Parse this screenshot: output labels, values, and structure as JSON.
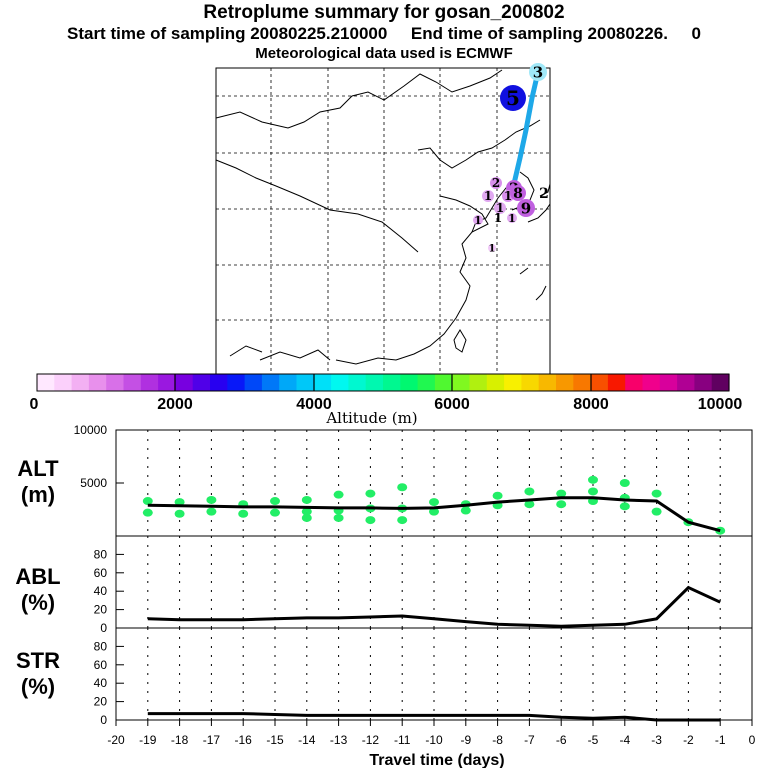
{
  "header": {
    "title": "Retroplume summary for gosan_200802",
    "sampling": "Start time of sampling 20080225.210000     End time of sampling 20080226.     0",
    "met": "Meteorological data used is ECMWF"
  },
  "colors": {
    "trajectory": "#1ea8e8",
    "dots": "#22ee66",
    "line": "#000000"
  },
  "colorbar": {
    "title": "Altitude (m)",
    "labels": [
      "0",
      "2000",
      "4000",
      "6000",
      "8000",
      "10000"
    ],
    "colors": [
      "#ffe8ff",
      "#fbd0fb",
      "#f3b0f3",
      "#e890ec",
      "#d870e8",
      "#c450e4",
      "#b030e0",
      "#9a18e0",
      "#7800e0",
      "#5000e8",
      "#2800f0",
      "#0818f8",
      "#0048f8",
      "#0078f8",
      "#00a8f8",
      "#00c8f8",
      "#00e0f8",
      "#00f8f0",
      "#00f8d0",
      "#00f8b0",
      "#00f890",
      "#00f870",
      "#20f850",
      "#50f830",
      "#80f820",
      "#b0f010",
      "#d8f000",
      "#f8f000",
      "#f8d800",
      "#f8b800",
      "#f89800",
      "#f87800",
      "#f85000",
      "#f81800",
      "#f8006a",
      "#f0008c",
      "#d8009c",
      "#b00094",
      "#880080",
      "#600060"
    ]
  },
  "map": {
    "markers": [
      {
        "label": "5",
        "color": "#1010e0"
      },
      {
        "label": "3",
        "color": "#a0e8f8"
      },
      {
        "label": "9",
        "color": "#c060e0"
      },
      {
        "label": "2",
        "color": "#c060e0"
      },
      {
        "label": "2",
        "color": "#d890ec"
      },
      {
        "label": "1",
        "color": "#e0a8f0"
      },
      {
        "label": "1",
        "color": "#e0a8f0"
      },
      {
        "label": "1",
        "color": "#d890ec"
      },
      {
        "label": "1",
        "color": "#e0a8f0"
      },
      {
        "label": "1",
        "color": "#e0a8f0"
      },
      {
        "label": "1",
        "color": "#f0c8f8"
      },
      {
        "label": "8",
        "color": "#c060e0"
      },
      {
        "label": "2",
        "color": "#ffffff"
      },
      {
        "label": "1",
        "color": "#ffffff"
      }
    ]
  },
  "chart_data": [
    {
      "type": "line",
      "id": "alt",
      "label_top": "ALT",
      "label_bottom": "(m)",
      "x": [
        -19,
        -18,
        -17,
        -16,
        -15,
        -14,
        -13,
        -12,
        -11,
        -10,
        -9,
        -8,
        -7,
        -6,
        -5,
        -4,
        -3,
        -2,
        -1
      ],
      "values": [
        2900,
        2850,
        2800,
        2750,
        2750,
        2700,
        2650,
        2650,
        2600,
        2650,
        2900,
        3200,
        3400,
        3600,
        3600,
        3400,
        3300,
        1300,
        500
      ],
      "ylim": [
        0,
        10000
      ],
      "yticks": [
        "5000",
        "10000"
      ],
      "ytick_values": [
        5000,
        10000
      ],
      "scatter": [
        [
          -19,
          3300
        ],
        [
          -19,
          2200
        ],
        [
          -18,
          3200
        ],
        [
          -18,
          2100
        ],
        [
          -17,
          3400
        ],
        [
          -17,
          2300
        ],
        [
          -16,
          3000
        ],
        [
          -16,
          2100
        ],
        [
          -15,
          3300
        ],
        [
          -15,
          2200
        ],
        [
          -14,
          3400
        ],
        [
          -14,
          2300
        ],
        [
          -14,
          1700
        ],
        [
          -13,
          3900
        ],
        [
          -13,
          2400
        ],
        [
          -13,
          1700
        ],
        [
          -12,
          4000
        ],
        [
          -12,
          2600
        ],
        [
          -12,
          1500
        ],
        [
          -11,
          4600
        ],
        [
          -11,
          2600
        ],
        [
          -11,
          1500
        ],
        [
          -10,
          3200
        ],
        [
          -10,
          2300
        ],
        [
          -9,
          3000
        ],
        [
          -9,
          2400
        ],
        [
          -8,
          3800
        ],
        [
          -8,
          2900
        ],
        [
          -7,
          4200
        ],
        [
          -7,
          3000
        ],
        [
          -6,
          4000
        ],
        [
          -6,
          3000
        ],
        [
          -5,
          5300
        ],
        [
          -5,
          4200
        ],
        [
          -5,
          3300
        ],
        [
          -4,
          5000
        ],
        [
          -4,
          3600
        ],
        [
          -4,
          2800
        ],
        [
          -3,
          4000
        ],
        [
          -3,
          2300
        ],
        [
          -2,
          1300
        ],
        [
          -1,
          500
        ]
      ]
    },
    {
      "type": "line",
      "id": "abl",
      "label_top": "ABL",
      "label_bottom": "(%)",
      "x": [
        -19,
        -18,
        -17,
        -16,
        -15,
        -14,
        -13,
        -12,
        -11,
        -10,
        -9,
        -8,
        -7,
        -6,
        -5,
        -4,
        -3,
        -2,
        -1
      ],
      "values": [
        10,
        9,
        9,
        9,
        10,
        11,
        11,
        12,
        13,
        10,
        7,
        4,
        3,
        2,
        3,
        4,
        10,
        44,
        28
      ],
      "ylim": [
        0,
        100
      ],
      "yticks": [
        "0",
        "20",
        "40",
        "60",
        "80"
      ],
      "ytick_values": [
        0,
        20,
        40,
        60,
        80
      ]
    },
    {
      "type": "line",
      "id": "str",
      "label_top": "STR",
      "label_bottom": "(%)",
      "x": [
        -19,
        -18,
        -17,
        -16,
        -15,
        -14,
        -13,
        -12,
        -11,
        -10,
        -9,
        -8,
        -7,
        -6,
        -5,
        -4,
        -3,
        -2,
        -1
      ],
      "values": [
        7,
        7,
        7,
        7,
        6,
        5,
        5,
        5,
        5,
        5,
        5,
        5,
        5,
        3,
        2,
        3,
        0,
        0,
        0
      ],
      "ylim": [
        0,
        100
      ],
      "yticks": [
        "0",
        "20",
        "40",
        "60",
        "80"
      ],
      "ytick_values": [
        0,
        20,
        40,
        60,
        80
      ],
      "xlabel": "Travel time (days)",
      "xticks": [
        "-20",
        "-19",
        "-18",
        "-17",
        "-16",
        "-15",
        "-14",
        "-13",
        "-12",
        "-11",
        "-10",
        "-9",
        "-8",
        "-7",
        "-6",
        "-5",
        "-4",
        "-3",
        "-2",
        "-1",
        "0"
      ]
    }
  ]
}
